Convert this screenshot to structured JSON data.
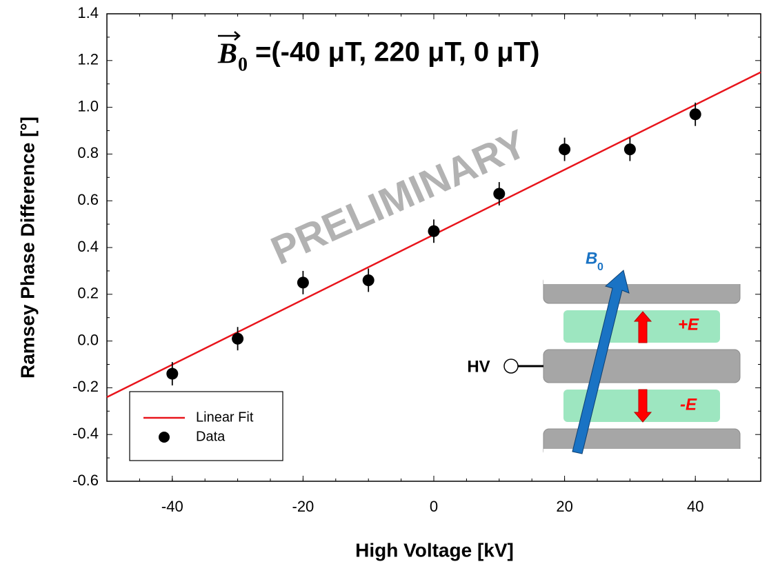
{
  "chart_data": {
    "type": "scatter",
    "title_symbol": "B",
    "title_symbol_subscript": "0",
    "title": "=(-40 μT, 220 μT, 0 μT)",
    "watermark": "PRELIMINARY",
    "x_label": "High Voltage [kV]",
    "y_label": "Ramsey Phase Difference [°]",
    "xlim": [
      -50,
      50
    ],
    "ylim": [
      -0.6,
      1.4
    ],
    "xticks": [
      -40,
      -20,
      0,
      20,
      40
    ],
    "yticks": [
      -0.6,
      -0.4,
      -0.2,
      {
        "value": 0,
        "label": "0.0"
      },
      0.2,
      0.4,
      0.6,
      0.8,
      {
        "value": 1,
        "label": "1.0"
      },
      1.2,
      1.4
    ],
    "legend_position": "lower-left",
    "series": [
      {
        "name": "Linear Fit",
        "color": "#e8141b",
        "style": "line",
        "x": [
          -50,
          50
        ],
        "values": [
          -0.24,
          1.15
        ]
      },
      {
        "name": "Data",
        "color": "#000000",
        "style": "marker",
        "x": [
          -40,
          -30,
          -20,
          -10,
          0,
          10,
          20,
          30,
          40
        ],
        "values": [
          -0.14,
          0.01,
          0.25,
          0.26,
          0.47,
          0.63,
          0.82,
          0.82,
          0.97
        ],
        "errors": [
          0.05,
          0.05,
          0.05,
          0.05,
          0.05,
          0.05,
          0.05,
          0.05,
          0.05
        ]
      }
    ],
    "inset": {
      "field_label": "B",
      "field_subscript": "0",
      "upper_field": "+E",
      "lower_field": "-E",
      "electrode": "HV"
    }
  }
}
